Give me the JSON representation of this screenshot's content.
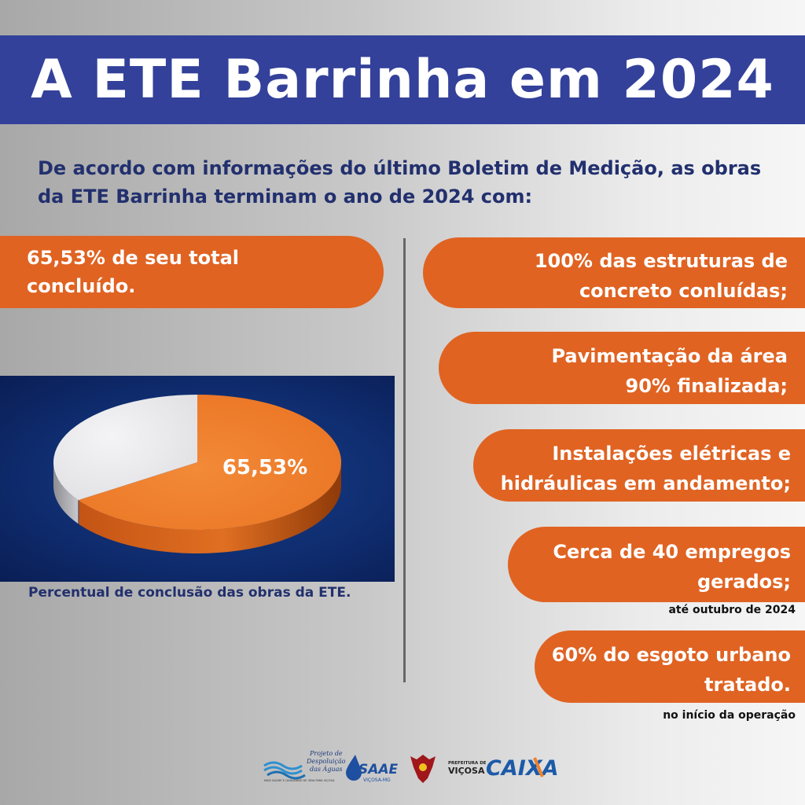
{
  "title": "A ETE Barrinha em 2024",
  "intro": "De acordo com informações do último Boletim de Medição, as obras da ETE Barrinha terminam o ano de 2024 com:",
  "highlight": {
    "line1": "65,53% de seu total",
    "line2": "concluído."
  },
  "chart_data": {
    "type": "pie",
    "slices": [
      {
        "label": "65,53%",
        "value": 65.53,
        "color": "#f07f2b"
      },
      {
        "label": "",
        "value": 34.47,
        "color": "#e9e9ec"
      }
    ],
    "caption": "Percentual de conclusão das obras da ETE."
  },
  "facts": [
    {
      "line1": "100% das estruturas de",
      "line2": "concreto conluídas;",
      "note": ""
    },
    {
      "line1": "Pavimentação da área",
      "line2": "90% finalizada;",
      "note": ""
    },
    {
      "line1": "Instalações elétricas e",
      "line2": "hidráulicas em andamento;",
      "note": ""
    },
    {
      "line1": "Cerca de 40 empregos",
      "line2": "gerados;",
      "note": "até outubro de 2024"
    },
    {
      "line1": "60% do esgoto urbano",
      "line2": "tratado.",
      "note": "no início da operação"
    }
  ],
  "logos": {
    "projeto_line1": "Projeto de",
    "projeto_line2": "Despoluição",
    "projeto_line3": "das Águas",
    "projeto_tagline": "MAIS SAÚDE E QUALIDADE DE VIDA PARA VIÇOSA",
    "saae": "SAAE",
    "saae_sub": "VIÇOSA-MG",
    "prefeitura_line1": "PREFEITURA DE",
    "prefeitura_line2": "VIÇOSA",
    "caixa": "CAIXA"
  },
  "colors": {
    "banner": "#33419a",
    "accent_orange": "#e06322",
    "text_navy": "#22306e",
    "chart_bg": "#0f2c6e"
  }
}
